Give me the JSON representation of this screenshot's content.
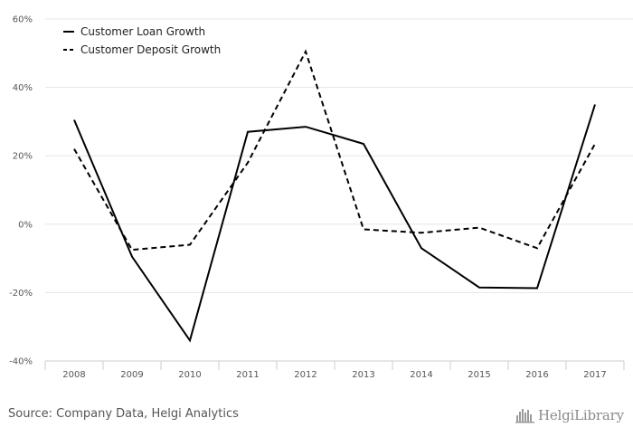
{
  "chart_data": {
    "type": "line",
    "title": "",
    "xlabel": "",
    "ylabel": "",
    "categories": [
      "2008",
      "2009",
      "2010",
      "2011",
      "2012",
      "2013",
      "2014",
      "2015",
      "2016",
      "2017"
    ],
    "series": [
      {
        "name": "Customer Loan Growth",
        "dash": "solid",
        "color": "#000000",
        "values": [
          30.5,
          -9.5,
          -34.0,
          27.0,
          28.5,
          23.5,
          -7.0,
          -18.5,
          -18.7,
          35.0
        ]
      },
      {
        "name": "Customer Deposit Growth",
        "dash": "dashed",
        "color": "#000000",
        "values": [
          22.0,
          -7.5,
          -6.0,
          18.0,
          50.5,
          -1.5,
          -2.5,
          -1.0,
          -7.0,
          23.5
        ]
      }
    ],
    "ylim": [
      -40,
      60
    ],
    "yticks": [
      {
        "value": 60,
        "label": "60%"
      },
      {
        "value": 40,
        "label": "40%"
      },
      {
        "value": 20,
        "label": "20%"
      },
      {
        "value": 0,
        "label": "0%"
      },
      {
        "value": -20,
        "label": "-20%"
      },
      {
        "value": -40,
        "label": "-40%"
      }
    ],
    "grid": true,
    "legend_position": "top-left"
  },
  "source": "Source: Company Data, Helgi Analytics",
  "logo": {
    "text": "HelgiLibrary",
    "icon": "cityscape-logo-icon"
  },
  "colors": {
    "grid": "#e6e6e6",
    "axis": "#cccccc",
    "text": "#555555"
  }
}
